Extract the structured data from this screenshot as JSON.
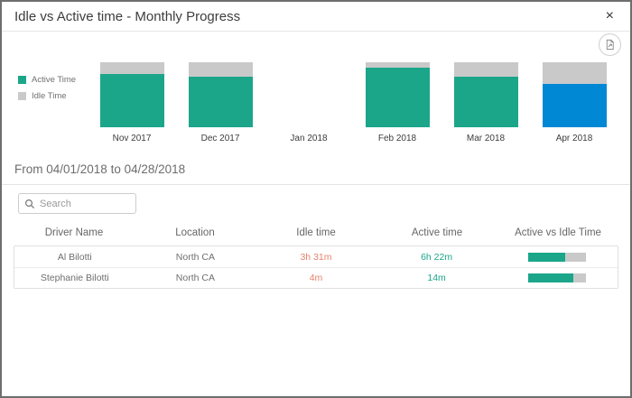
{
  "modal": {
    "title": "Idle vs Active time - Monthly Progress",
    "close_label": "×"
  },
  "toolbar": {
    "export_icon": "export-report-icon"
  },
  "chart_data": {
    "type": "bar",
    "stacked": true,
    "categories": [
      "Nov 2017",
      "Dec 2017",
      "Jan 2018",
      "Feb 2018",
      "Mar 2018",
      "Apr 2018"
    ],
    "series": [
      {
        "name": "Active Time",
        "values": [
          82,
          78,
          0,
          92,
          78,
          67
        ],
        "color": "#1BA68A"
      },
      {
        "name": "Idle Time",
        "values": [
          18,
          22,
          0,
          8,
          22,
          33
        ],
        "color": "#C9C9C9"
      }
    ],
    "highlight": {
      "category": "Apr 2018",
      "series": "Active Time",
      "color": "#0088D4"
    },
    "title": "",
    "xlabel": "",
    "ylabel": "",
    "ylim": [
      0,
      100
    ],
    "legend_position": "left",
    "grid": false,
    "axes_hidden": true
  },
  "legend": {
    "items": [
      {
        "label": "Active Time",
        "color": "#1BA68A"
      },
      {
        "label": "Idle Time",
        "color": "#C9C9C9"
      }
    ]
  },
  "subtitle": {
    "text": "From 04/01/2018 to 04/28/2018"
  },
  "search": {
    "placeholder": "Search",
    "value": ""
  },
  "table": {
    "columns": [
      "Driver Name",
      "Location",
      "Idle time",
      "Active time",
      "Active vs Idle Time"
    ],
    "rows": [
      {
        "driver": "Al Bilotti",
        "location": "North CA",
        "idle_time": "3h 31m",
        "active_time": "6h 22m",
        "active_pct": 64
      },
      {
        "driver": "Stephanie Bilotti",
        "location": "North CA",
        "idle_time": "4m",
        "active_time": "14m",
        "active_pct": 78
      }
    ]
  },
  "colors": {
    "active": "#1BA68A",
    "idle": "#C9C9C9",
    "highlight_blue": "#0088D4",
    "idle_text": "#E8826C",
    "active_text": "#1BA68A"
  }
}
